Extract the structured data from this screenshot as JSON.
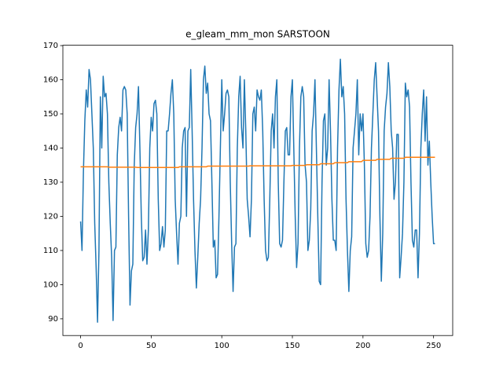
{
  "chart_data": {
    "type": "line",
    "title": "e_gleam_mm_mon SARSTOON",
    "xlim": [
      -12.55,
      263.55
    ],
    "xticks": [
      0,
      50,
      100,
      150,
      200,
      250
    ],
    "ylim": [
      85.1,
      170.1
    ],
    "yticks": [
      90,
      100,
      110,
      120,
      130,
      140,
      150,
      160,
      170
    ],
    "series": [
      {
        "color": "#1f77b4",
        "values": [
          118.5,
          110,
          133,
          148,
          157,
          152,
          163,
          160,
          150,
          140,
          118,
          105,
          89,
          110,
          155,
          140,
          161,
          155,
          156,
          150,
          130,
          118,
          108,
          89.5,
          110,
          111,
          138,
          146,
          149,
          145,
          157,
          158,
          157,
          150,
          120,
          94,
          104,
          106,
          135,
          146,
          150,
          158,
          140,
          120,
          107,
          108,
          116,
          106,
          116,
          140,
          149,
          145,
          153,
          154,
          150,
          125,
          110,
          112,
          117,
          111,
          116,
          145,
          145,
          150,
          156,
          160,
          150,
          125,
          115,
          106,
          118,
          120,
          140,
          145,
          146,
          120,
          145,
          146,
          163,
          145,
          125,
          110,
          99,
          108,
          118,
          125,
          140,
          160,
          164,
          156,
          159,
          150,
          148,
          130,
          111,
          113,
          102,
          103,
          120,
          140,
          160,
          145,
          150,
          156,
          157,
          155,
          130,
          112,
          98,
          111,
          112,
          140,
          155,
          161,
          146,
          140,
          160,
          145,
          125,
          120,
          114,
          125,
          150,
          152,
          145,
          157,
          155,
          154,
          157,
          145,
          125,
          110,
          107,
          108,
          125,
          145,
          150,
          140,
          155,
          160,
          130,
          112,
          111,
          113,
          130,
          145,
          146,
          138,
          138,
          155,
          160,
          140,
          120,
          105,
          112,
          140,
          155,
          158,
          155,
          135,
          130,
          110,
          113,
          122,
          145,
          150,
          160,
          140,
          120,
          101,
          100,
          130,
          148,
          150,
          135,
          140,
          160,
          145,
          125,
          113,
          113,
          110,
          140,
          157,
          166,
          155,
          158,
          150,
          125,
          110,
          98,
          110,
          114,
          140,
          145,
          150,
          160,
          138,
          150,
          145,
          150,
          135,
          112,
          108,
          110,
          120,
          140,
          150,
          160,
          165,
          155,
          145,
          120,
          101,
          115,
          145,
          152,
          156,
          165,
          158,
          145,
          140,
          125,
          130,
          144,
          144,
          102,
          108,
          115,
          130,
          159,
          155,
          157,
          152,
          130,
          113,
          111,
          116,
          116,
          102,
          115,
          140,
          150,
          157,
          142,
          155,
          135,
          142,
          130,
          120,
          112,
          112
        ]
      },
      {
        "color": "#ff7f0e",
        "values": [
          134.5,
          134.5,
          134.5,
          134.5,
          134.5,
          134.5,
          134.5,
          134.5,
          134.5,
          134.5,
          134.5,
          134.5,
          134.5,
          134.5,
          134.5,
          134.5,
          134.5,
          134.5,
          134.5,
          134.5,
          134.4,
          134.4,
          134.4,
          134.4,
          134.4,
          134.4,
          134.4,
          134.4,
          134.4,
          134.4,
          134.4,
          134.4,
          134.4,
          134.4,
          134.4,
          134.4,
          134.4,
          134.4,
          134.4,
          134.4,
          134.3,
          134.3,
          134.3,
          134.3,
          134.3,
          134.3,
          134.3,
          134.3,
          134.3,
          134.3,
          134.3,
          134.3,
          134.3,
          134.3,
          134.3,
          134.3,
          134.3,
          134.3,
          134.3,
          134.3,
          134.3,
          134.3,
          134.3,
          134.3,
          134.3,
          134.3,
          134.3,
          134.3,
          134.3,
          134.3,
          134.5,
          134.5,
          134.5,
          134.5,
          134.5,
          134.5,
          134.5,
          134.5,
          134.5,
          134.5,
          134.5,
          134.5,
          134.5,
          134.5,
          134.5,
          134.5,
          134.5,
          134.5,
          134.5,
          134.5,
          134.7,
          134.7,
          134.7,
          134.7,
          134.7,
          134.7,
          134.7,
          134.7,
          134.7,
          134.7,
          134.7,
          134.7,
          134.7,
          134.7,
          134.7,
          134.7,
          134.7,
          134.7,
          134.7,
          134.7,
          134.7,
          134.7,
          134.7,
          134.7,
          134.7,
          134.7,
          134.7,
          134.7,
          134.7,
          134.7,
          134.8,
          134.8,
          134.8,
          134.8,
          134.8,
          134.8,
          134.8,
          134.8,
          134.8,
          134.8,
          134.8,
          134.8,
          134.8,
          134.8,
          134.8,
          134.8,
          134.8,
          134.8,
          134.8,
          134.8,
          134.8,
          134.8,
          134.8,
          134.8,
          134.8,
          134.8,
          134.8,
          134.8,
          134.8,
          134.8,
          134.9,
          134.9,
          134.9,
          134.9,
          134.9,
          134.9,
          134.9,
          134.9,
          134.9,
          134.9,
          135.1,
          135.1,
          135.1,
          135.1,
          135.1,
          135.1,
          135.1,
          135.1,
          135.1,
          135.1,
          135.4,
          135.4,
          135.4,
          135.4,
          135.4,
          135.4,
          135.4,
          135.4,
          135.4,
          135.4,
          135.7,
          135.7,
          135.7,
          135.7,
          135.7,
          135.7,
          135.7,
          135.7,
          135.7,
          135.7,
          136.0,
          136.0,
          136.0,
          136.0,
          136.0,
          136.0,
          136.0,
          136.0,
          136.0,
          136.0,
          136.4,
          136.4,
          136.4,
          136.4,
          136.4,
          136.4,
          136.4,
          136.4,
          136.4,
          136.4,
          136.7,
          136.7,
          136.7,
          136.7,
          136.7,
          136.7,
          136.7,
          136.7,
          136.7,
          136.7,
          137.0,
          137.0,
          137.0,
          137.0,
          137.0,
          137.0,
          137.0,
          137.0,
          137.0,
          137.0,
          137.3,
          137.3,
          137.3,
          137.3,
          137.3,
          137.3,
          137.3,
          137.3,
          137.3,
          137.3,
          137.3,
          137.3,
          137.3,
          137.3,
          137.3,
          137.3,
          137.3,
          137.3,
          137.3,
          137.3,
          137.3,
          137.3
        ]
      }
    ]
  }
}
